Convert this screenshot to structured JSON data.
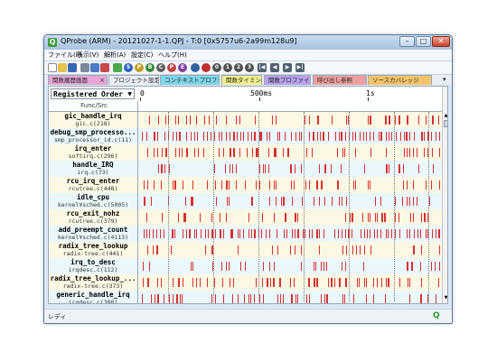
{
  "window": {
    "title": "QProbe (ARM) - 20121027-1-1.QPJ - T:0 [0x5757u6-2a99m128u9]"
  },
  "title_buttons": {
    "minimize": "–",
    "maximize": "□",
    "close": "✕"
  },
  "menu": [
    "ファイル(F)",
    "表示(V)",
    "解析(A)",
    "設定(C)",
    "ヘルプ(H)"
  ],
  "toolbar": {
    "buttons": [
      {
        "icon": "new-icon",
        "glyph": "",
        "color": "#ffffff"
      },
      {
        "icon": "open-icon",
        "glyph": "",
        "color": "#e8c24a"
      },
      {
        "icon": "save-icon",
        "glyph": "",
        "color": "#3a66b8"
      },
      {
        "icon": "print-icon",
        "glyph": "",
        "color": "#7a8a9a"
      },
      {
        "icon": "tool-a-icon",
        "glyph": "",
        "color": "#4a7ac8"
      },
      {
        "icon": "tool-b-icon",
        "glyph": "",
        "color": "#c84a4a"
      },
      {
        "icon": "tool-c-icon",
        "glyph": "",
        "color": "#4aa84a"
      },
      {
        "icon": "s-icon",
        "glyph": "S",
        "color": "#3060c0"
      },
      {
        "icon": "p-icon",
        "glyph": "P",
        "color": "#c0a020"
      },
      {
        "icon": "b-icon",
        "glyph": "B",
        "color": "#3a8a3a"
      },
      {
        "icon": "c-icon",
        "glyph": "C",
        "color": "#606060"
      },
      {
        "icon": "p2-icon",
        "glyph": "P",
        "color": "#c04040"
      },
      {
        "icon": "e-icon",
        "glyph": "E",
        "color": "#8040a0"
      },
      {
        "icon": "record-icon",
        "glyph": "",
        "color": "#3060a0"
      },
      {
        "icon": "stop-icon",
        "glyph": "",
        "color": "#c03030"
      },
      {
        "icon": "zero-icon",
        "glyph": "0",
        "color": "#505050"
      },
      {
        "icon": "one-icon",
        "glyph": "1",
        "color": "#505050"
      },
      {
        "icon": "two-icon",
        "glyph": "2",
        "color": "#505050"
      },
      {
        "icon": "three-icon",
        "glyph": "3",
        "color": "#505050"
      },
      {
        "icon": "skip-start-icon",
        "glyph": "|◀",
        "color": "#506070"
      },
      {
        "icon": "step-back-icon",
        "glyph": "◀",
        "color": "#506070"
      },
      {
        "icon": "step-forward-icon",
        "glyph": "▶",
        "color": "#506070"
      },
      {
        "icon": "skip-end-icon",
        "glyph": "▶|",
        "color": "#506070"
      }
    ]
  },
  "tabs": [
    {
      "label": "関数履歴画面",
      "color": "#e7a6d6",
      "active": true,
      "close": "×"
    },
    {
      "label": "プロジェクト設定",
      "color": "#e9eef5"
    },
    {
      "label": "コンテキストプロファイル",
      "color": "#7fd6ea"
    },
    {
      "label": "関数タイミング",
      "color": "#f1f08c"
    },
    {
      "label": "関数プロファイル",
      "color": "#b9a2ea"
    },
    {
      "label": "呼び出し参照",
      "color": "#ef9f9f"
    },
    {
      "label": "ソースカバレッジ",
      "color": "#f4c46a"
    }
  ],
  "pin_icon": "▾",
  "order_select": {
    "value": "Registered Order",
    "arrow": "▼"
  },
  "ruler": {
    "labels": [
      "0",
      "500ms",
      "1s"
    ]
  },
  "column_header": "Func/Src",
  "rows": [
    {
      "func": "gic_handle_irq",
      "src": "gic.c(218)"
    },
    {
      "func": "debug_smp_processo...",
      "src": "smp_processor_id.c(11)"
    },
    {
      "func": "irq_enter",
      "src": "softirq.c(296)"
    },
    {
      "func": "handle_IRQ",
      "src": "irq.c(73)"
    },
    {
      "func": "rcu_irq_enter",
      "src": "rcutree.c(448)"
    },
    {
      "func": "idle_cpu",
      "src": "kernel¥sched.c(5005)"
    },
    {
      "func": "rcu_exit_nohz",
      "src": "rcutree.c(379)"
    },
    {
      "func": "add_preempt_count",
      "src": "kernel¥sched.c(4113)"
    },
    {
      "func": "radix_tree_lookup",
      "src": "radix-tree.c(441)"
    },
    {
      "func": "irq_to_desc",
      "src": "irqdesc.c(112)"
    },
    {
      "func": "radix_tree_lookup_...",
      "src": "radix-tree.c(373)"
    },
    {
      "func": "generic_handle_irq",
      "src": "irqdesc.c(308)"
    }
  ],
  "scroll": {
    "up": "▲",
    "down": "▼"
  },
  "status": {
    "text": "レディ",
    "logo": "Q"
  }
}
